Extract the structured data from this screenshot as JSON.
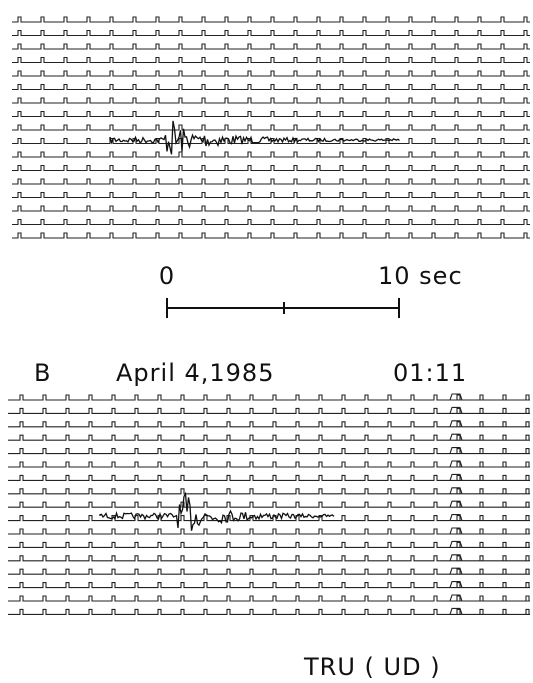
{
  "scale": {
    "start": "0",
    "end": "10 sec"
  },
  "panel_b": {
    "label": "B",
    "date": "April 4,1985",
    "time": "01:11"
  },
  "station": "TRU ( UD )"
}
